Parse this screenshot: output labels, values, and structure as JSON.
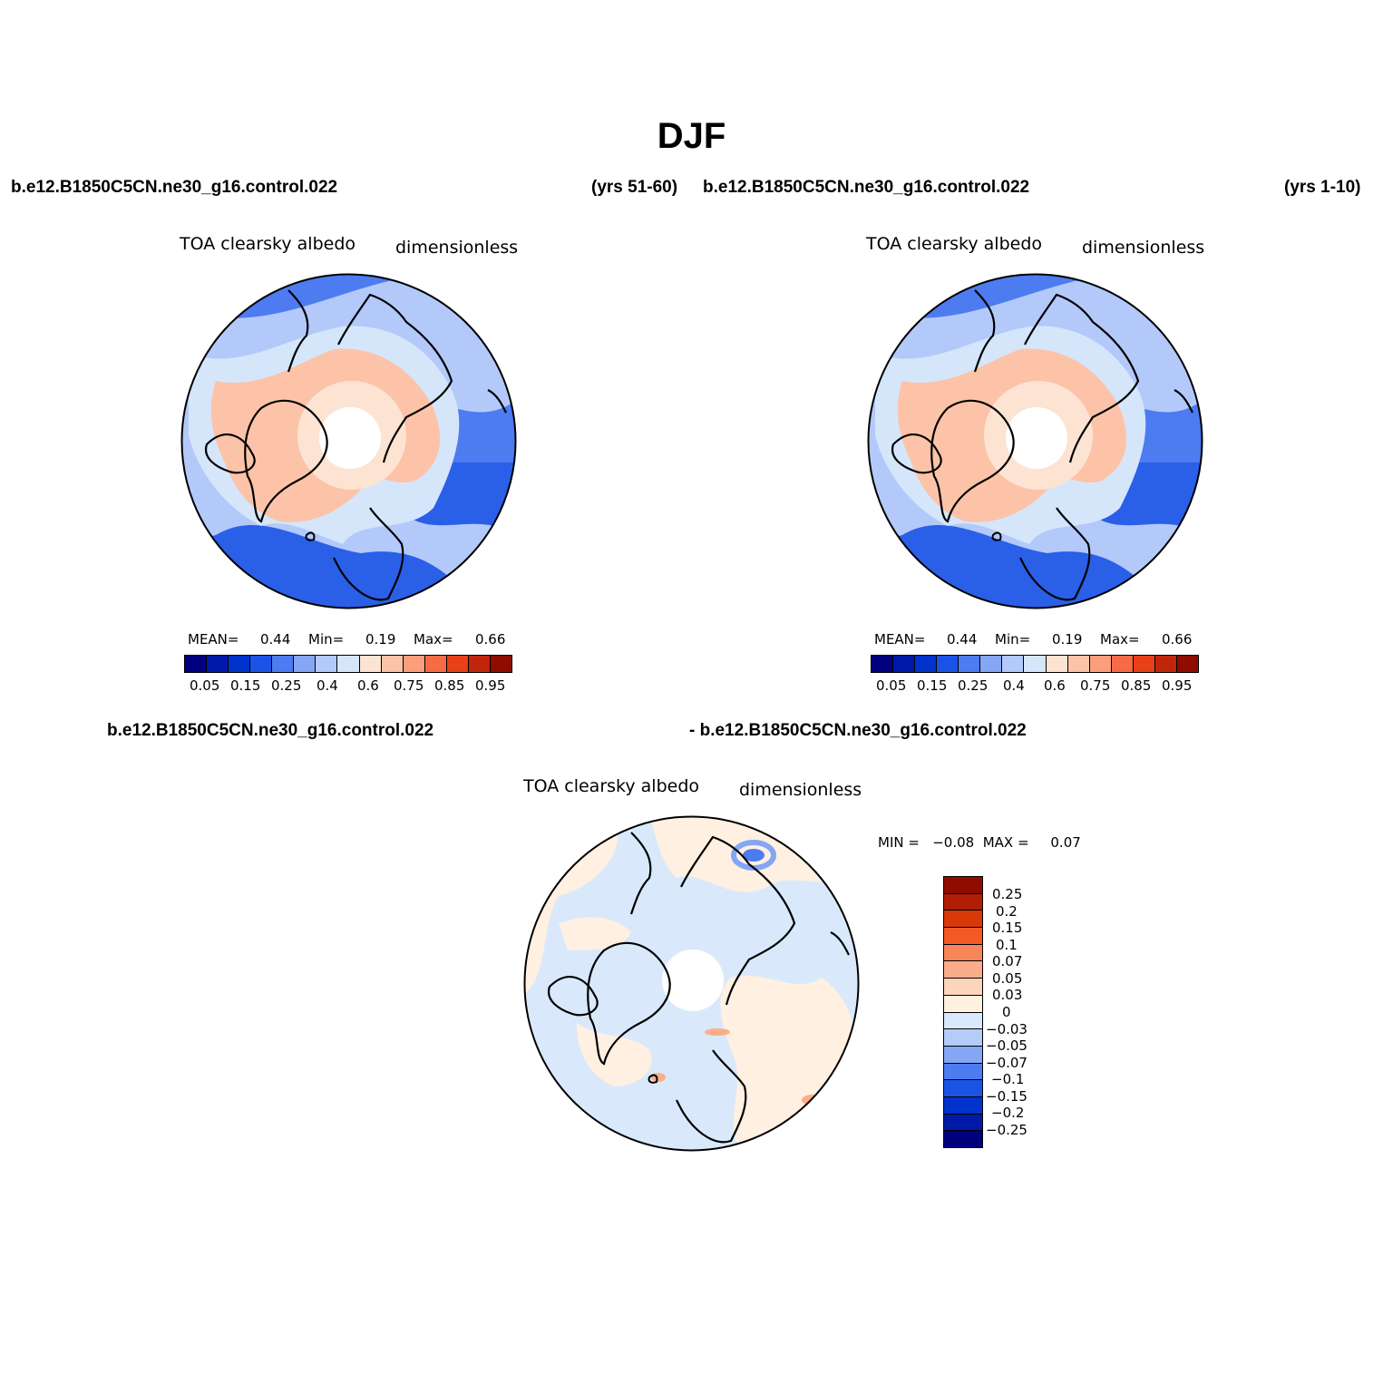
{
  "title": "DJF",
  "colors": {
    "albedo_scale": [
      "#00007f",
      "#0019a8",
      "#0033cc",
      "#1a53e6",
      "#4d7bf0",
      "#85a5f5",
      "#b3c9fa",
      "#d5e6fb",
      "#fde3d2",
      "#fcc3a8",
      "#fc9e7c",
      "#f66b45",
      "#e84018",
      "#c0260c",
      "#8f0c00"
    ],
    "diff_scale": [
      "#8f0c00",
      "#b01e06",
      "#d93809",
      "#f25a25",
      "#f8865a",
      "#fbad89",
      "#fdd5bd",
      "#fff0e2",
      "#d9e9fb",
      "#b3cdf8",
      "#85a5f5",
      "#4d7bf0",
      "#1a53e6",
      "#0033cc",
      "#0019a8",
      "#00007f"
    ],
    "land_line": "#000000"
  },
  "panel1": {
    "case": "b.e12.B1850C5CN.ne30_g16.control.022",
    "years": "(yrs 51-60)",
    "variable": "TOA clearsky albedo",
    "units": "dimensionless",
    "mean_label": "MEAN=",
    "mean_value": "0.44",
    "min_label": "Min=",
    "min_value": "0.19",
    "max_label": "Max=",
    "max_value": "0.66",
    "ticks": [
      "0.05",
      "0.15",
      "0.25",
      "0.4",
      "0.6",
      "0.75",
      "0.85",
      "0.95"
    ]
  },
  "panel2": {
    "case": "b.e12.B1850C5CN.ne30_g16.control.022",
    "years": "(yrs 1-10)",
    "variable": "TOA clearsky albedo",
    "units": "dimensionless",
    "mean_label": "MEAN=",
    "mean_value": "0.44",
    "min_label": "Min=",
    "min_value": "0.19",
    "max_label": "Max=",
    "max_value": "0.66",
    "ticks": [
      "0.05",
      "0.15",
      "0.25",
      "0.4",
      "0.6",
      "0.75",
      "0.85",
      "0.95"
    ]
  },
  "panel3": {
    "case_left": "b.e12.B1850C5CN.ne30_g16.control.022",
    "case_right": "- b.e12.B1850C5CN.ne30_g16.control.022",
    "variable": "TOA clearsky albedo",
    "units": "dimensionless",
    "minmax_label": "MIN =   −0.08  MAX =     0.07",
    "ticks": [
      "0.25",
      "0.2",
      "0.15",
      "0.1",
      "0.07",
      "0.05",
      "0.03",
      "0",
      "−0.03",
      "−0.05",
      "−0.07",
      "−0.1",
      "−0.15",
      "−0.2",
      "−0.25"
    ]
  }
}
